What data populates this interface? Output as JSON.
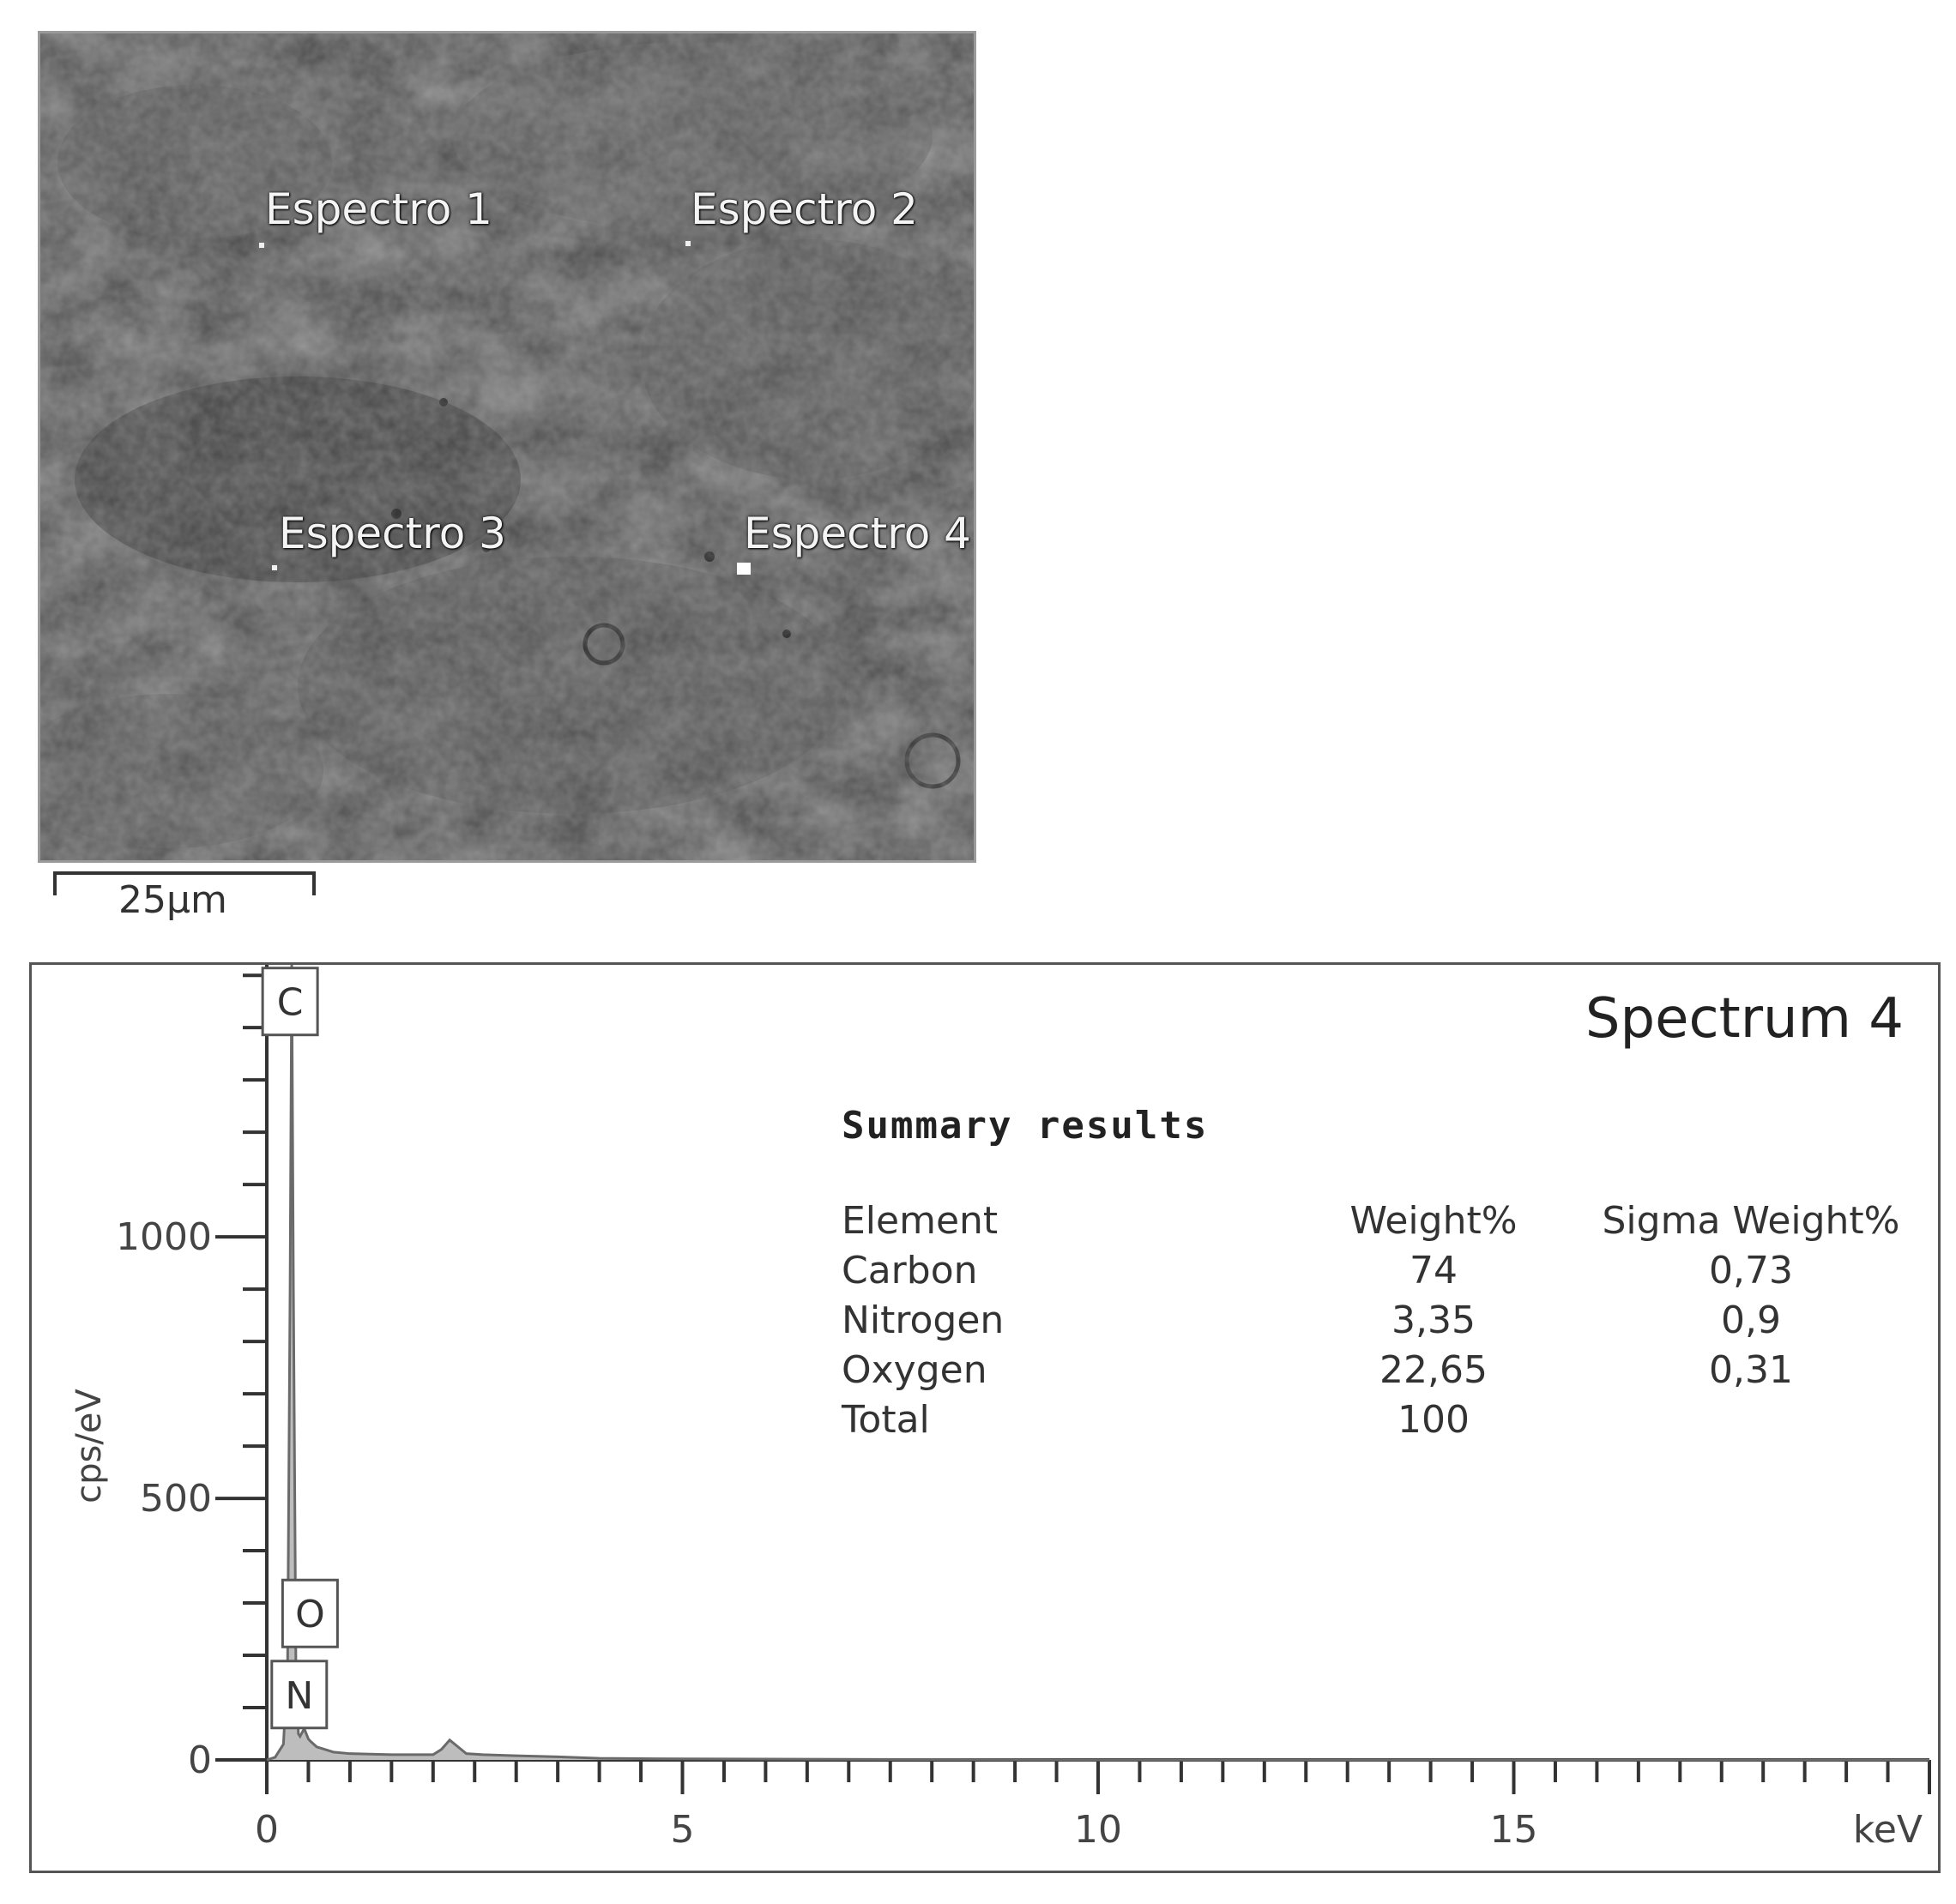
{
  "micrograph": {
    "spots": [
      {
        "label": "Espectro 1"
      },
      {
        "label": "Espectro 2"
      },
      {
        "label": "Espectro 3"
      },
      {
        "label": "Espectro 4"
      }
    ],
    "scale_bar_label": "25µm"
  },
  "chart_data": {
    "type": "line",
    "title": "Spectrum 4",
    "xlabel": "keV",
    "ylabel": "cps/eV",
    "xlim": [
      0,
      20
    ],
    "ylim": [
      0,
      1520
    ],
    "x_ticks": [
      0,
      5,
      10,
      15
    ],
    "y_ticks": [
      0,
      500,
      1000
    ],
    "series": [
      {
        "x": [
          0.0,
          0.1,
          0.2,
          0.25,
          0.28,
          0.3,
          0.32,
          0.35,
          0.38,
          0.4,
          0.45,
          0.5,
          0.53,
          0.6,
          0.7,
          0.8,
          1.0,
          1.5,
          2.0,
          2.1,
          2.2,
          2.3,
          2.4,
          2.6,
          3.0,
          3.5,
          4.0,
          5.0,
          10.0,
          15.0,
          20.0
        ],
        "y": [
          0,
          5,
          30,
          180,
          900,
          1520,
          900,
          180,
          50,
          45,
          60,
          40,
          35,
          25,
          20,
          15,
          12,
          10,
          10,
          20,
          38,
          25,
          12,
          10,
          8,
          6,
          3,
          2,
          0,
          0,
          0
        ]
      }
    ],
    "peak_labels": [
      {
        "label": "C",
        "x": 0.28,
        "y": 1450
      },
      {
        "label": "O",
        "x": 0.52,
        "y": 280
      },
      {
        "label": "N",
        "x": 0.39,
        "y": 125
      }
    ]
  },
  "summary": {
    "heading": "Summary  results",
    "columns": [
      "Element",
      "Weight%",
      "Sigma Weight%"
    ],
    "rows": [
      {
        "element": "Carbon",
        "weight": "74",
        "sigma": "0,73"
      },
      {
        "element": "Nitrogen",
        "weight": "3,35",
        "sigma": "0,9"
      },
      {
        "element": "Oxygen",
        "weight": "22,65",
        "sigma": "0,31"
      },
      {
        "element": "Total",
        "weight": "100",
        "sigma": ""
      }
    ]
  }
}
